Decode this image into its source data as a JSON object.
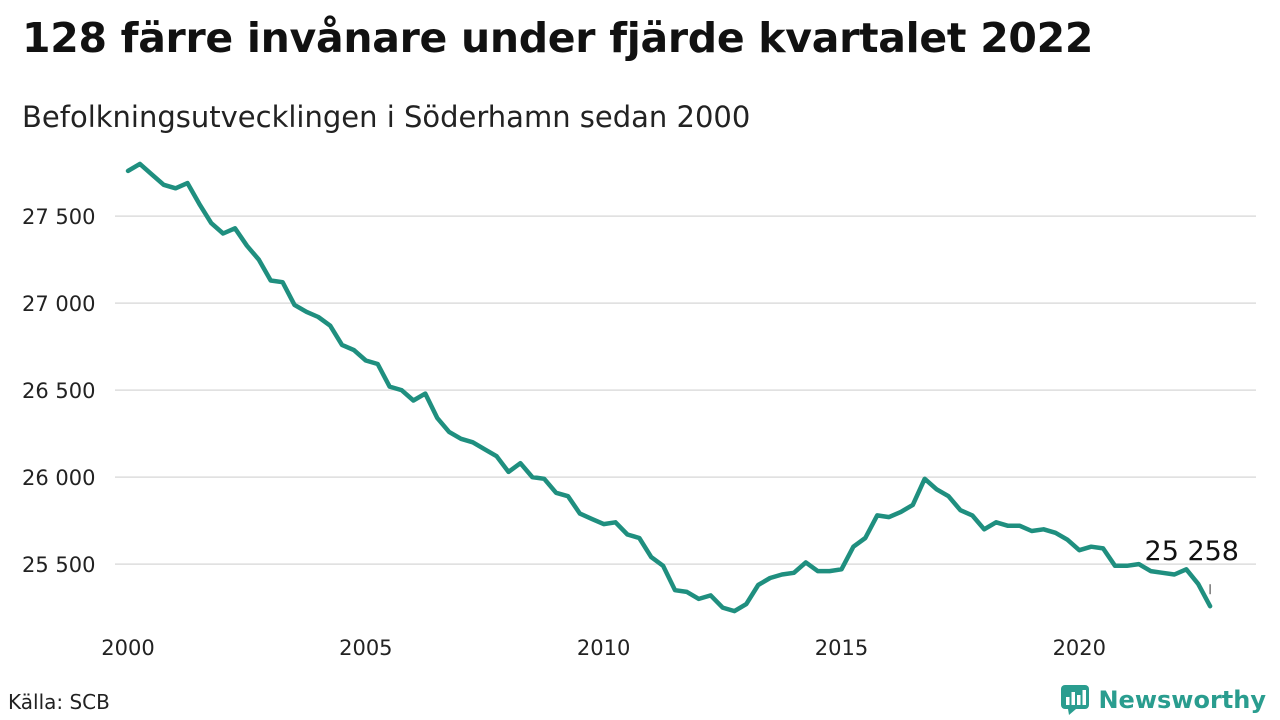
{
  "header": {
    "title": "128 färre invånare under fjärde kvartalet 2022",
    "subtitle": "Befolkningsutvecklingen i Söderhamn sedan 2000"
  },
  "footer": {
    "source": "Källa: SCB",
    "brand": "Newsworthy"
  },
  "colors": {
    "line": "#1f8f7f",
    "grid": "#dddddd",
    "brand": "#2a9d8f"
  },
  "icons": {
    "brand_logo": "newsworthy-chart-bubble-icon"
  },
  "chart_data": {
    "type": "line",
    "title": "128 färre invånare under fjärde kvartalet 2022",
    "subtitle": "Befolkningsutvecklingen i Söderhamn sedan 2000",
    "xlabel": "",
    "ylabel": "",
    "xlim": [
      2000.0,
      2023.0
    ],
    "ylim": [
      25150,
      27880
    ],
    "x_ticks": [
      2000,
      2005,
      2010,
      2015,
      2020
    ],
    "x_tick_labels": [
      "2000",
      "2005",
      "2010",
      "2015",
      "2020"
    ],
    "y_ticks": [
      25500,
      26000,
      26500,
      27000,
      27500
    ],
    "y_tick_labels": [
      "25 500",
      "26 000",
      "26 500",
      "27 000",
      "27 500"
    ],
    "grid": "horizontal",
    "end_label": "25 258",
    "series": [
      {
        "x": [
          2000.0,
          2000.25,
          2000.5,
          2000.75,
          2001.0,
          2001.25,
          2001.5,
          2001.75,
          2002.0,
          2002.25,
          2002.5,
          2002.75,
          2003.0,
          2003.25,
          2003.5,
          2003.75,
          2004.0,
          2004.25,
          2004.5,
          2004.75,
          2005.0,
          2005.25,
          2005.5,
          2005.75,
          2006.0,
          2006.25,
          2006.5,
          2006.75,
          2007.0,
          2007.25,
          2007.5,
          2007.75,
          2008.0,
          2008.25,
          2008.5,
          2008.75,
          2009.0,
          2009.25,
          2009.5,
          2009.75,
          2010.0,
          2010.25,
          2010.5,
          2010.75,
          2011.0,
          2011.25,
          2011.5,
          2011.75,
          2012.0,
          2012.25,
          2012.5,
          2012.75,
          2013.0,
          2013.25,
          2013.5,
          2013.75,
          2014.0,
          2014.25,
          2014.5,
          2014.75,
          2015.0,
          2015.25,
          2015.5,
          2015.75,
          2016.0,
          2016.25,
          2016.5,
          2016.75,
          2017.0,
          2017.25,
          2017.5,
          2017.75,
          2018.0,
          2018.25,
          2018.5,
          2018.75,
          2019.0,
          2019.25,
          2019.5,
          2019.75,
          2020.0,
          2020.25,
          2020.5,
          2020.75,
          2021.0,
          2021.25,
          2021.5,
          2021.75,
          2022.0,
          2022.25,
          2022.5,
          2022.75
        ],
        "values": [
          27760,
          27800,
          27740,
          27680,
          27660,
          27690,
          27570,
          27460,
          27400,
          27430,
          27330,
          27250,
          27130,
          27120,
          26990,
          26950,
          26920,
          26870,
          26760,
          26730,
          26670,
          26650,
          26520,
          26500,
          26440,
          26480,
          26340,
          26260,
          26220,
          26200,
          26160,
          26120,
          26030,
          26080,
          26000,
          25990,
          25910,
          25890,
          25790,
          25760,
          25730,
          25740,
          25670,
          25650,
          25540,
          25490,
          25350,
          25340,
          25300,
          25320,
          25250,
          25230,
          25270,
          25380,
          25420,
          25440,
          25450,
          25510,
          25460,
          25460,
          25470,
          25600,
          25650,
          25780,
          25770,
          25800,
          25840,
          25990,
          25930,
          25890,
          25810,
          25780,
          25700,
          25740,
          25720,
          25720,
          25690,
          25700,
          25680,
          25640,
          25580,
          25600,
          25590,
          25490,
          25490,
          25500,
          25460,
          25450,
          25440,
          25470,
          25386,
          25258
        ]
      }
    ]
  }
}
